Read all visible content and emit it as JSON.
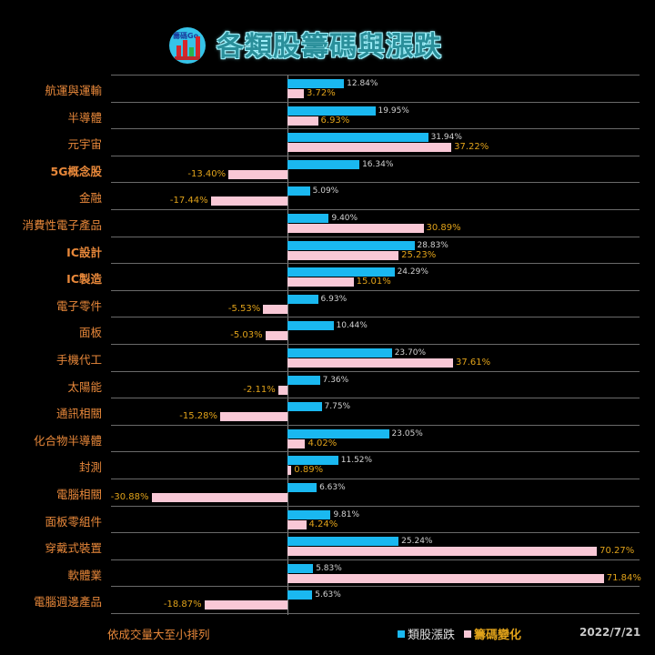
{
  "header": {
    "title": "各類股籌碼與漲跌",
    "logo_text": "籌碼Go"
  },
  "footer": {
    "note": "依成交量大至小排列",
    "date": "2022/7/21"
  },
  "legend": [
    {
      "label": "類股漲跌",
      "color": "#1ab8f0",
      "text_color": "#e0e0e0"
    },
    {
      "label": "籌碼變化",
      "color": "#f9c8d6",
      "text_color": "#e0a21a"
    }
  ],
  "colors": {
    "background": "#000000",
    "category_text": "#e8883a",
    "price_bar": "#1ab8f0",
    "chip_bar": "#f9c8d6",
    "price_label": "#d2d2d2",
    "chip_label": "#e0a21a"
  },
  "chart_data": {
    "type": "bar",
    "orientation": "horizontal",
    "title": "各類股籌碼與漲跌",
    "xlabel": "",
    "ylabel": "",
    "xlim": [
      -33,
      80
    ],
    "grid": true,
    "legend_position": "bottom",
    "categories": [
      "航運與運輸",
      "半導體",
      "元宇宙",
      "5G概念股",
      "金融",
      "消費性電子產品",
      "IC設計",
      "IC製造",
      "電子零件",
      "面板",
      "手機代工",
      "太陽能",
      "通訊相關",
      "化合物半導體",
      "封測",
      "電腦相關",
      "面板零組件",
      "穿戴式裝置",
      "軟體業",
      "電腦週邊產品"
    ],
    "series": [
      {
        "name": "類股漲跌",
        "values": [
          12.84,
          19.95,
          31.94,
          16.34,
          5.09,
          9.4,
          28.83,
          24.29,
          6.93,
          10.44,
          23.7,
          7.36,
          7.75,
          23.05,
          11.52,
          6.63,
          9.81,
          25.24,
          5.83,
          5.63
        ],
        "labels": [
          "12.84%",
          "19.95%",
          "31.94%",
          "16.34%",
          "5.09%",
          "9.40%",
          "28.83%",
          "24.29%",
          "6.93%",
          "10.44%",
          "23.70%",
          "7.36%",
          "7.75%",
          "23.05%",
          "11.52%",
          "6.63%",
          "9.81%",
          "25.24%",
          "5.83%",
          "5.63%"
        ]
      },
      {
        "name": "籌碼變化",
        "values": [
          3.72,
          6.93,
          37.22,
          -13.4,
          -17.44,
          30.89,
          25.23,
          15.01,
          -5.53,
          -5.03,
          37.61,
          -2.11,
          -15.28,
          4.02,
          0.89,
          -30.88,
          4.24,
          70.27,
          71.84,
          -18.87
        ],
        "labels": [
          "3.72%",
          "6.93%",
          "37.22%",
          "-13.40%",
          "-17.44%",
          "30.89%",
          "25.23%",
          "15.01%",
          "-5.53%",
          "-5.03%",
          "37.61%",
          "-2.11%",
          "-15.28%",
          "4.02%",
          "0.89%",
          "-30.88%",
          "4.24%",
          "70.27%",
          "71.84%",
          "-18.87%"
        ]
      }
    ],
    "annotations": [
      "依成交量大至小排列",
      "2022/7/21"
    ]
  }
}
